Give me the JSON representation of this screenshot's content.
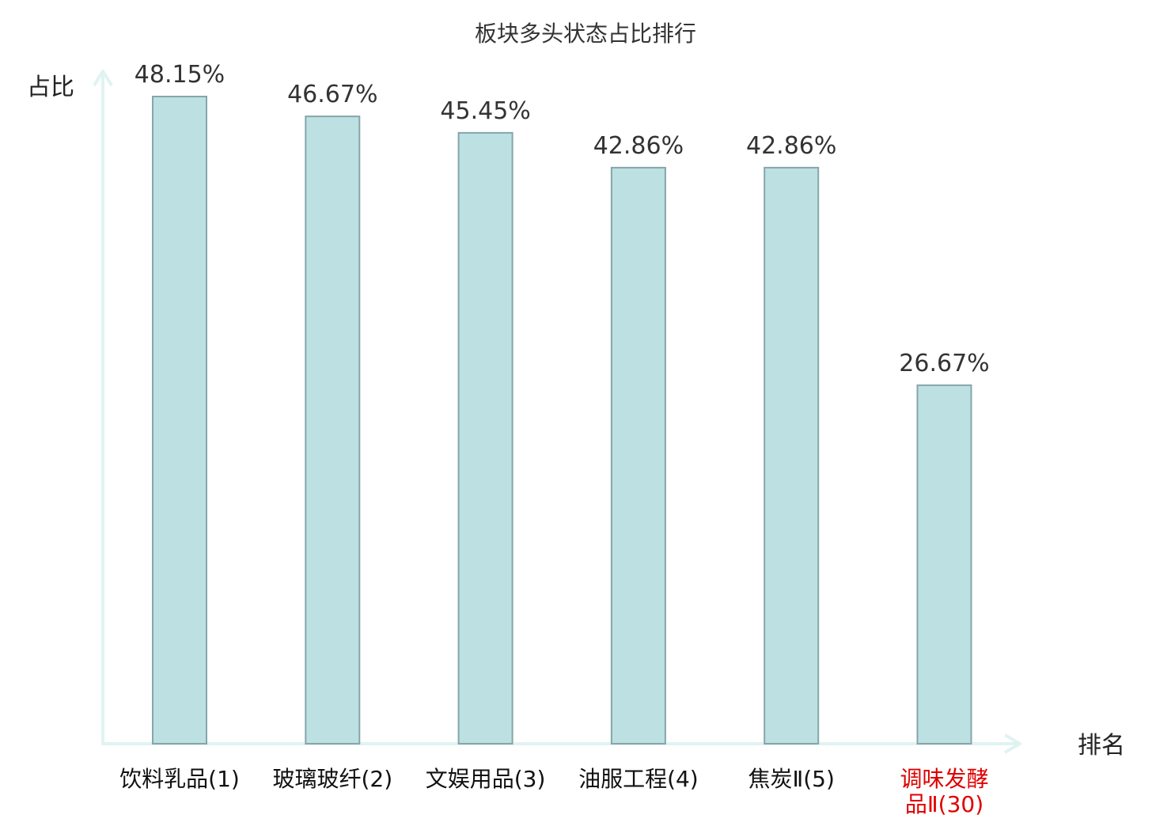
{
  "chart_data": {
    "type": "bar",
    "title": "板块多头状态占比排行",
    "ylabel": "占比",
    "xlabel": "排名",
    "categories": [
      [
        "饮料乳品(1)"
      ],
      [
        "玻璃玻纤(2)"
      ],
      [
        "文娱用品(3)"
      ],
      [
        "油服工程(4)"
      ],
      [
        "焦炭Ⅱ(5)"
      ],
      [
        "调味发酵",
        "品Ⅱ(30)"
      ]
    ],
    "values": [
      48.15,
      46.67,
      45.45,
      42.86,
      42.86,
      26.67
    ],
    "value_labels": [
      "48.15%",
      "46.67%",
      "45.45%",
      "42.86%",
      "42.86%",
      "26.67%"
    ],
    "highlight_index": 5,
    "ylim": [
      0,
      48.15
    ],
    "grid": false,
    "legend": "none",
    "colors": {
      "bar_fill": "#bde0e3",
      "bar_stroke": "#86a6a9",
      "axis": "#e0f3f1",
      "text": "#333333",
      "highlight_text": "#e00000"
    }
  }
}
